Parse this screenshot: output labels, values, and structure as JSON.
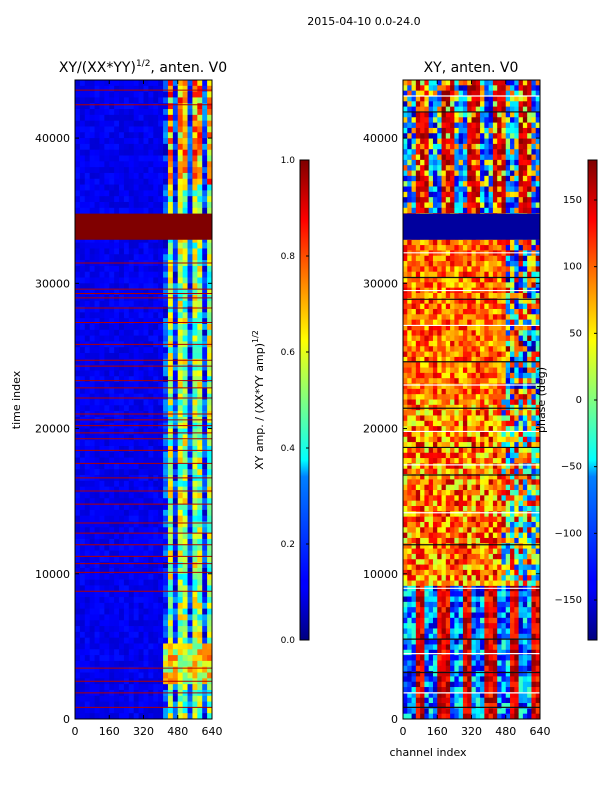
{
  "figure": {
    "suptitle": "2015-04-10 0.0-24.0"
  },
  "chart_data": [
    {
      "type": "heatmap",
      "title": "XY/(XX*YY)^1/2, anten. V0",
      "title_main": "XY/(XX*YY)",
      "title_exp": "1/2",
      "title_tail": ", anten. V0",
      "xlabel": "",
      "ylabel": "time index",
      "xlim": [
        0,
        640
      ],
      "ylim": [
        0,
        44000
      ],
      "x_ticks": [
        0,
        160,
        320,
        480,
        640
      ],
      "y_ticks": [
        0,
        10000,
        20000,
        30000,
        40000
      ],
      "colormap": "jet",
      "colorbar": {
        "label": "XY amp. / (XX*YY amp)^1/2",
        "label_main": "XY amp. / (XX*YY amp)",
        "label_exp": "1/2",
        "range": [
          0.0,
          1.0
        ],
        "ticks": [
          "0.0",
          "0.2",
          "0.4",
          "0.6",
          "0.8",
          "1.0"
        ]
      },
      "features": {
        "saturated_time_range": [
          33000,
          34800
        ],
        "saturated_value": 1.0,
        "background_value": 0.1,
        "active_channel_range": [
          420,
          640
        ],
        "flagged_rows": [
          800,
          1800,
          2600,
          3500,
          8800,
          10100,
          10700,
          11200,
          12000,
          12800,
          13500,
          14800,
          15700,
          16600,
          17600,
          18500,
          19300,
          19700,
          20200,
          20600,
          21000,
          22100,
          22800,
          23300,
          24300,
          24700,
          25800,
          27300,
          28300,
          29000,
          29300,
          29600,
          31400,
          42300,
          43300
        ]
      }
    },
    {
      "type": "heatmap",
      "title": "XY, anten. V0",
      "xlabel": "channel index",
      "ylabel": "",
      "xlim": [
        0,
        640
      ],
      "ylim": [
        0,
        44000
      ],
      "x_ticks": [
        0,
        160,
        320,
        480,
        640
      ],
      "y_ticks": [
        0,
        10000,
        20000,
        30000,
        40000
      ],
      "colormap": "jet",
      "colorbar": {
        "label": "phase (deg)",
        "range": [
          -180,
          180
        ],
        "ticks": [
          "−150",
          "−100",
          "−50",
          "0",
          "50",
          "100",
          "150"
        ]
      },
      "features": {
        "low_phase_time_range": [
          33000,
          34800
        ],
        "flagged_rows": [
          800,
          1800,
          3200,
          4500,
          5500,
          9000,
          12000,
          14200,
          16800,
          17500,
          18700,
          19800,
          21400,
          23000,
          24600,
          27100,
          28900,
          29500,
          30400,
          32100,
          41800,
          42900
        ]
      }
    }
  ]
}
